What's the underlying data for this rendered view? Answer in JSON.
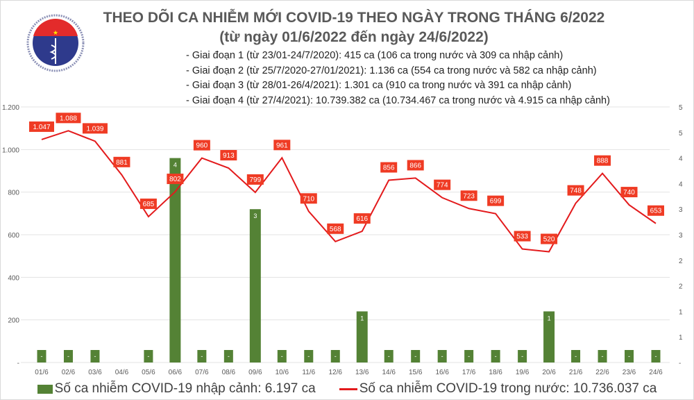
{
  "logo": {
    "text_top": "BỘ Y TẾ",
    "text_bottom": "MINISTRY OF HEALTH"
  },
  "title": "THEO DÕI CA NHIỄM MỚI COVID-19 THEO NGÀY TRONG THÁNG 6/2022",
  "subtitle": "(từ ngày 01/6/2022 đến ngày 24/6/2022)",
  "phases": [
    "- Giai đoạn 1 (từ 23/01-24/7/2020): 415 ca (106 ca trong nước và 309 ca nhập cảnh)",
    "- Giai đoạn 2 (từ 25/7/2020-27/01/2021): 1.136 ca (554 ca trong nước và 582 ca nhập cảnh)",
    "- Giai đoạn 3 (từ 28/01-26/4/2021): 1.301 ca (910 ca trong nước và 391 ca nhập cảnh)",
    "- Giai đoạn 4 (từ 27/4/2021): 10.739.382 ca (10.734.467 ca trong nước và 4.915 ca nhập cảnh)"
  ],
  "chart_data": {
    "type": "bar+line",
    "categories": [
      "01/6",
      "02/6",
      "03/6",
      "04/6",
      "05/6",
      "06/6",
      "07/6",
      "08/6",
      "09/6",
      "10/6",
      "11/6",
      "12/6",
      "13/6",
      "14/6",
      "15/6",
      "16/6",
      "17/6",
      "18/6",
      "19/6",
      "20/6",
      "21/6",
      "22/6",
      "23/6",
      "24/6"
    ],
    "series": [
      {
        "name": "Số ca nhiễm COVID-19 nhập cảnh: 6.197 ca",
        "type": "bar",
        "axis": "right",
        "color": "#548235",
        "values": [
          0,
          0,
          0,
          null,
          0,
          4,
          0,
          0,
          3,
          0,
          0,
          0,
          1,
          0,
          0,
          0,
          0,
          0,
          0,
          1,
          0,
          0,
          0,
          0
        ]
      },
      {
        "name": "Số ca nhiễm COVID-19 trong nước: 10.736.037 ca",
        "type": "line",
        "axis": "left",
        "color": "#e31a1c",
        "values": [
          1047,
          1088,
          1039,
          881,
          685,
          802,
          960,
          913,
          799,
          961,
          710,
          568,
          616,
          856,
          866,
          774,
          723,
          699,
          533,
          520,
          748,
          888,
          740,
          653
        ]
      }
    ],
    "left_axis": {
      "ylim": [
        0,
        1200
      ],
      "ticks": [
        "-",
        "200",
        "400",
        "600",
        "800",
        "1.000",
        "1.200"
      ]
    },
    "right_axis": {
      "ylim": [
        0,
        5
      ],
      "ticks": [
        "-",
        "1",
        "1",
        "2",
        "2",
        "3",
        "3",
        "4",
        "4",
        "5",
        "5"
      ]
    },
    "bar_labels": [
      "-",
      "-",
      "-",
      "",
      "-",
      "4",
      "-",
      "-",
      "3",
      "-",
      "-",
      "-",
      "1",
      "-",
      "-",
      "-",
      "-",
      "-",
      "-",
      "1",
      "-",
      "-",
      "-",
      "-"
    ],
    "line_labels": [
      "1.047",
      "1.088",
      "1.039",
      "881",
      "685",
      "802",
      "960",
      "913",
      "799",
      "961",
      "710",
      "568",
      "616",
      "856",
      "866",
      "774",
      "723",
      "699",
      "533",
      "520",
      "748",
      "888",
      "740",
      "653"
    ],
    "grid": true,
    "legend": "bottom"
  }
}
